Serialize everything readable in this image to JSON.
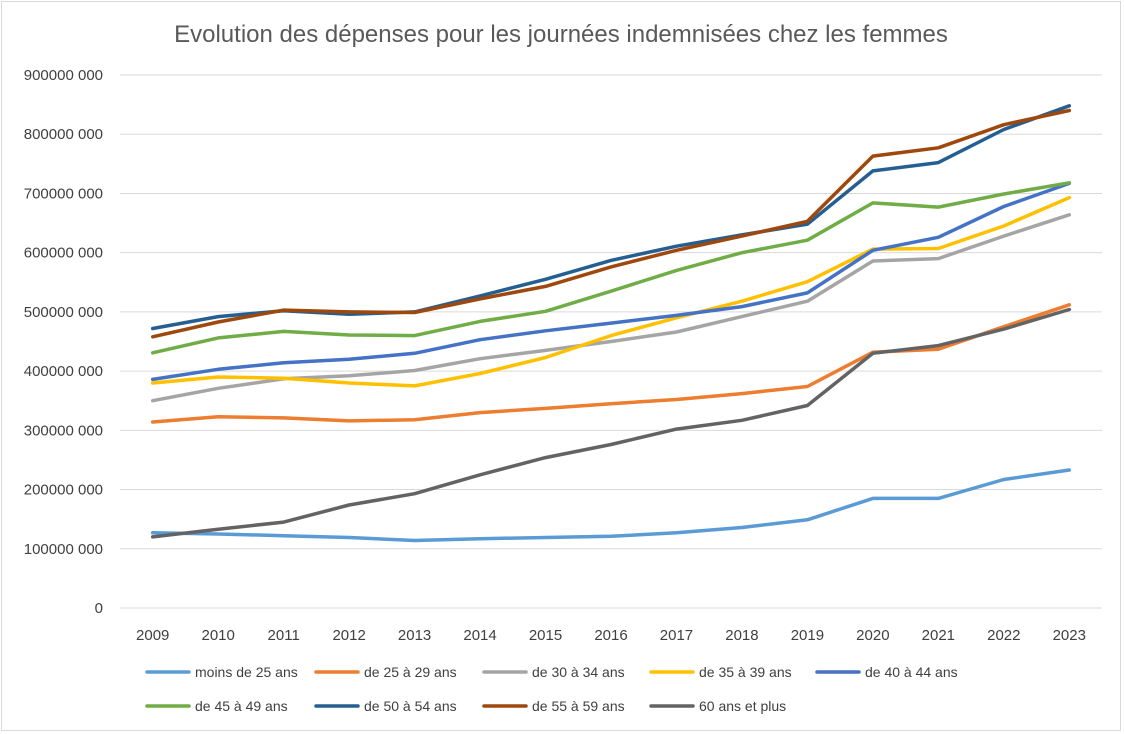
{
  "chart_data": {
    "type": "line",
    "title": "Evolution des dépenses pour les journées indemnisées chez les femmes",
    "xlabel": "",
    "ylabel": "",
    "ylim": [
      0,
      900000000
    ],
    "grid": true,
    "legend_position": "bottom",
    "y_ticks": [
      0,
      100000000,
      200000000,
      300000000,
      400000000,
      500000000,
      600000000,
      700000000,
      800000000,
      900000000
    ],
    "y_tick_labels": [
      "0",
      "100000 000",
      "200000 000",
      "300000 000",
      "400000 000",
      "500000 000",
      "600000 000",
      "700000 000",
      "800000 000",
      "900000 000"
    ],
    "categories": [
      "2009",
      "2010",
      "2011",
      "2012",
      "2013",
      "2014",
      "2015",
      "2016",
      "2017",
      "2018",
      "2019",
      "2020",
      "2021",
      "2022",
      "2023"
    ],
    "series": [
      {
        "name": "moins de 25 ans",
        "color": "#5B9BD5",
        "values": [
          127000000,
          125000000,
          122000000,
          119000000,
          114000000,
          117000000,
          119000000,
          121000000,
          127000000,
          136000000,
          149000000,
          185000000,
          185000000,
          217000000,
          233000000
        ]
      },
      {
        "name": "de 25 à 29 ans",
        "color": "#ED7D31",
        "values": [
          314000000,
          323000000,
          321000000,
          316000000,
          318000000,
          330000000,
          337000000,
          345000000,
          352000000,
          362000000,
          374000000,
          432000000,
          437000000,
          475000000,
          512000000
        ]
      },
      {
        "name": "de 30 à 34 ans",
        "color": "#A5A5A5",
        "values": [
          350000000,
          371000000,
          387000000,
          392000000,
          401000000,
          421000000,
          435000000,
          450000000,
          466000000,
          492000000,
          518000000,
          586000000,
          590000000,
          628000000,
          664000000
        ]
      },
      {
        "name": "de 35 à 39 ans",
        "color": "#FFC000",
        "values": [
          380000000,
          390000000,
          388000000,
          380000000,
          375000000,
          396000000,
          423000000,
          460000000,
          490000000,
          518000000,
          551000000,
          606000000,
          607000000,
          645000000,
          693000000
        ]
      },
      {
        "name": "de 40 à 44 ans",
        "color": "#4472C4",
        "values": [
          386000000,
          403000000,
          414000000,
          420000000,
          430000000,
          453000000,
          468000000,
          481000000,
          494000000,
          509000000,
          532000000,
          604000000,
          626000000,
          678000000,
          717000000
        ]
      },
      {
        "name": "de 45 à 49 ans",
        "color": "#70AD47",
        "values": [
          431000000,
          456000000,
          467000000,
          461000000,
          460000000,
          484000000,
          501000000,
          535000000,
          570000000,
          600000000,
          621000000,
          684000000,
          677000000,
          699000000,
          718000000
        ]
      },
      {
        "name": "de 50 à 54 ans",
        "color": "#255E91",
        "values": [
          472000000,
          492000000,
          502000000,
          496000000,
          500000000,
          527000000,
          555000000,
          587000000,
          611000000,
          630000000,
          648000000,
          738000000,
          752000000,
          808000000,
          848000000
        ]
      },
      {
        "name": "de 55 à 59 ans",
        "color": "#9E480E",
        "values": [
          458000000,
          483000000,
          503000000,
          500000000,
          499000000,
          522000000,
          543000000,
          576000000,
          604000000,
          628000000,
          653000000,
          763000000,
          777000000,
          816000000,
          840000000
        ]
      },
      {
        "name": "60 ans et plus",
        "color": "#636363",
        "values": [
          120000000,
          133000000,
          145000000,
          174000000,
          193000000,
          225000000,
          254000000,
          276000000,
          302000000,
          317000000,
          342000000,
          430000000,
          443000000,
          471000000,
          504000000
        ]
      }
    ]
  }
}
